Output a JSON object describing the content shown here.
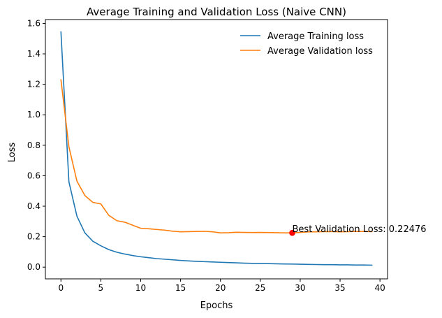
{
  "chart_data": {
    "type": "line",
    "title": "Average Training and Validation Loss (Naive CNN)",
    "xlabel": "Epochs",
    "ylabel": "Loss",
    "xlim": [
      -1.95,
      40.95
    ],
    "ylim": [
      -0.077,
      1.625
    ],
    "xticks": [
      0,
      5,
      10,
      15,
      20,
      25,
      30,
      35,
      40
    ],
    "yticks": [
      0.0,
      0.2,
      0.4,
      0.6,
      0.8,
      1.0,
      1.2,
      1.4,
      1.6
    ],
    "ytick_labels": [
      "0.0",
      "0.2",
      "0.4",
      "0.6",
      "0.8",
      "1.0",
      "1.2",
      "1.4",
      "1.6"
    ],
    "grid": false,
    "legend_position": "upper-right",
    "x": [
      0,
      1,
      2,
      3,
      4,
      5,
      6,
      7,
      8,
      9,
      10,
      11,
      12,
      13,
      14,
      15,
      16,
      17,
      18,
      19,
      20,
      21,
      22,
      23,
      24,
      25,
      26,
      27,
      28,
      29,
      30,
      31,
      32,
      33,
      34,
      35,
      36,
      37,
      38,
      39
    ],
    "series": [
      {
        "name": "Average Training loss",
        "color": "#1f77b4",
        "values": [
          1.545,
          0.56,
          0.335,
          0.225,
          0.17,
          0.14,
          0.115,
          0.098,
          0.086,
          0.076,
          0.068,
          0.062,
          0.056,
          0.052,
          0.048,
          0.044,
          0.041,
          0.038,
          0.036,
          0.034,
          0.032,
          0.03,
          0.028,
          0.026,
          0.025,
          0.024,
          0.023,
          0.022,
          0.021,
          0.02,
          0.019,
          0.018,
          0.017,
          0.016,
          0.016,
          0.015,
          0.015,
          0.014,
          0.014,
          0.013
        ]
      },
      {
        "name": "Average Validation loss",
        "color": "#ff7f0e",
        "values": [
          1.23,
          0.79,
          0.565,
          0.47,
          0.425,
          0.415,
          0.34,
          0.305,
          0.295,
          0.275,
          0.255,
          0.252,
          0.247,
          0.243,
          0.236,
          0.232,
          0.233,
          0.234,
          0.235,
          0.232,
          0.225,
          0.226,
          0.229,
          0.228,
          0.227,
          0.228,
          0.227,
          0.226,
          0.225,
          0.225,
          0.228,
          0.231,
          0.232,
          0.233,
          0.233,
          0.232,
          0.233,
          0.234,
          0.234,
          0.233
        ]
      }
    ],
    "annotations": [
      {
        "text": "Best Validation Loss: 0.22476",
        "x": 29,
        "y": 0.22476,
        "marker_color": "#ff0000"
      }
    ]
  }
}
